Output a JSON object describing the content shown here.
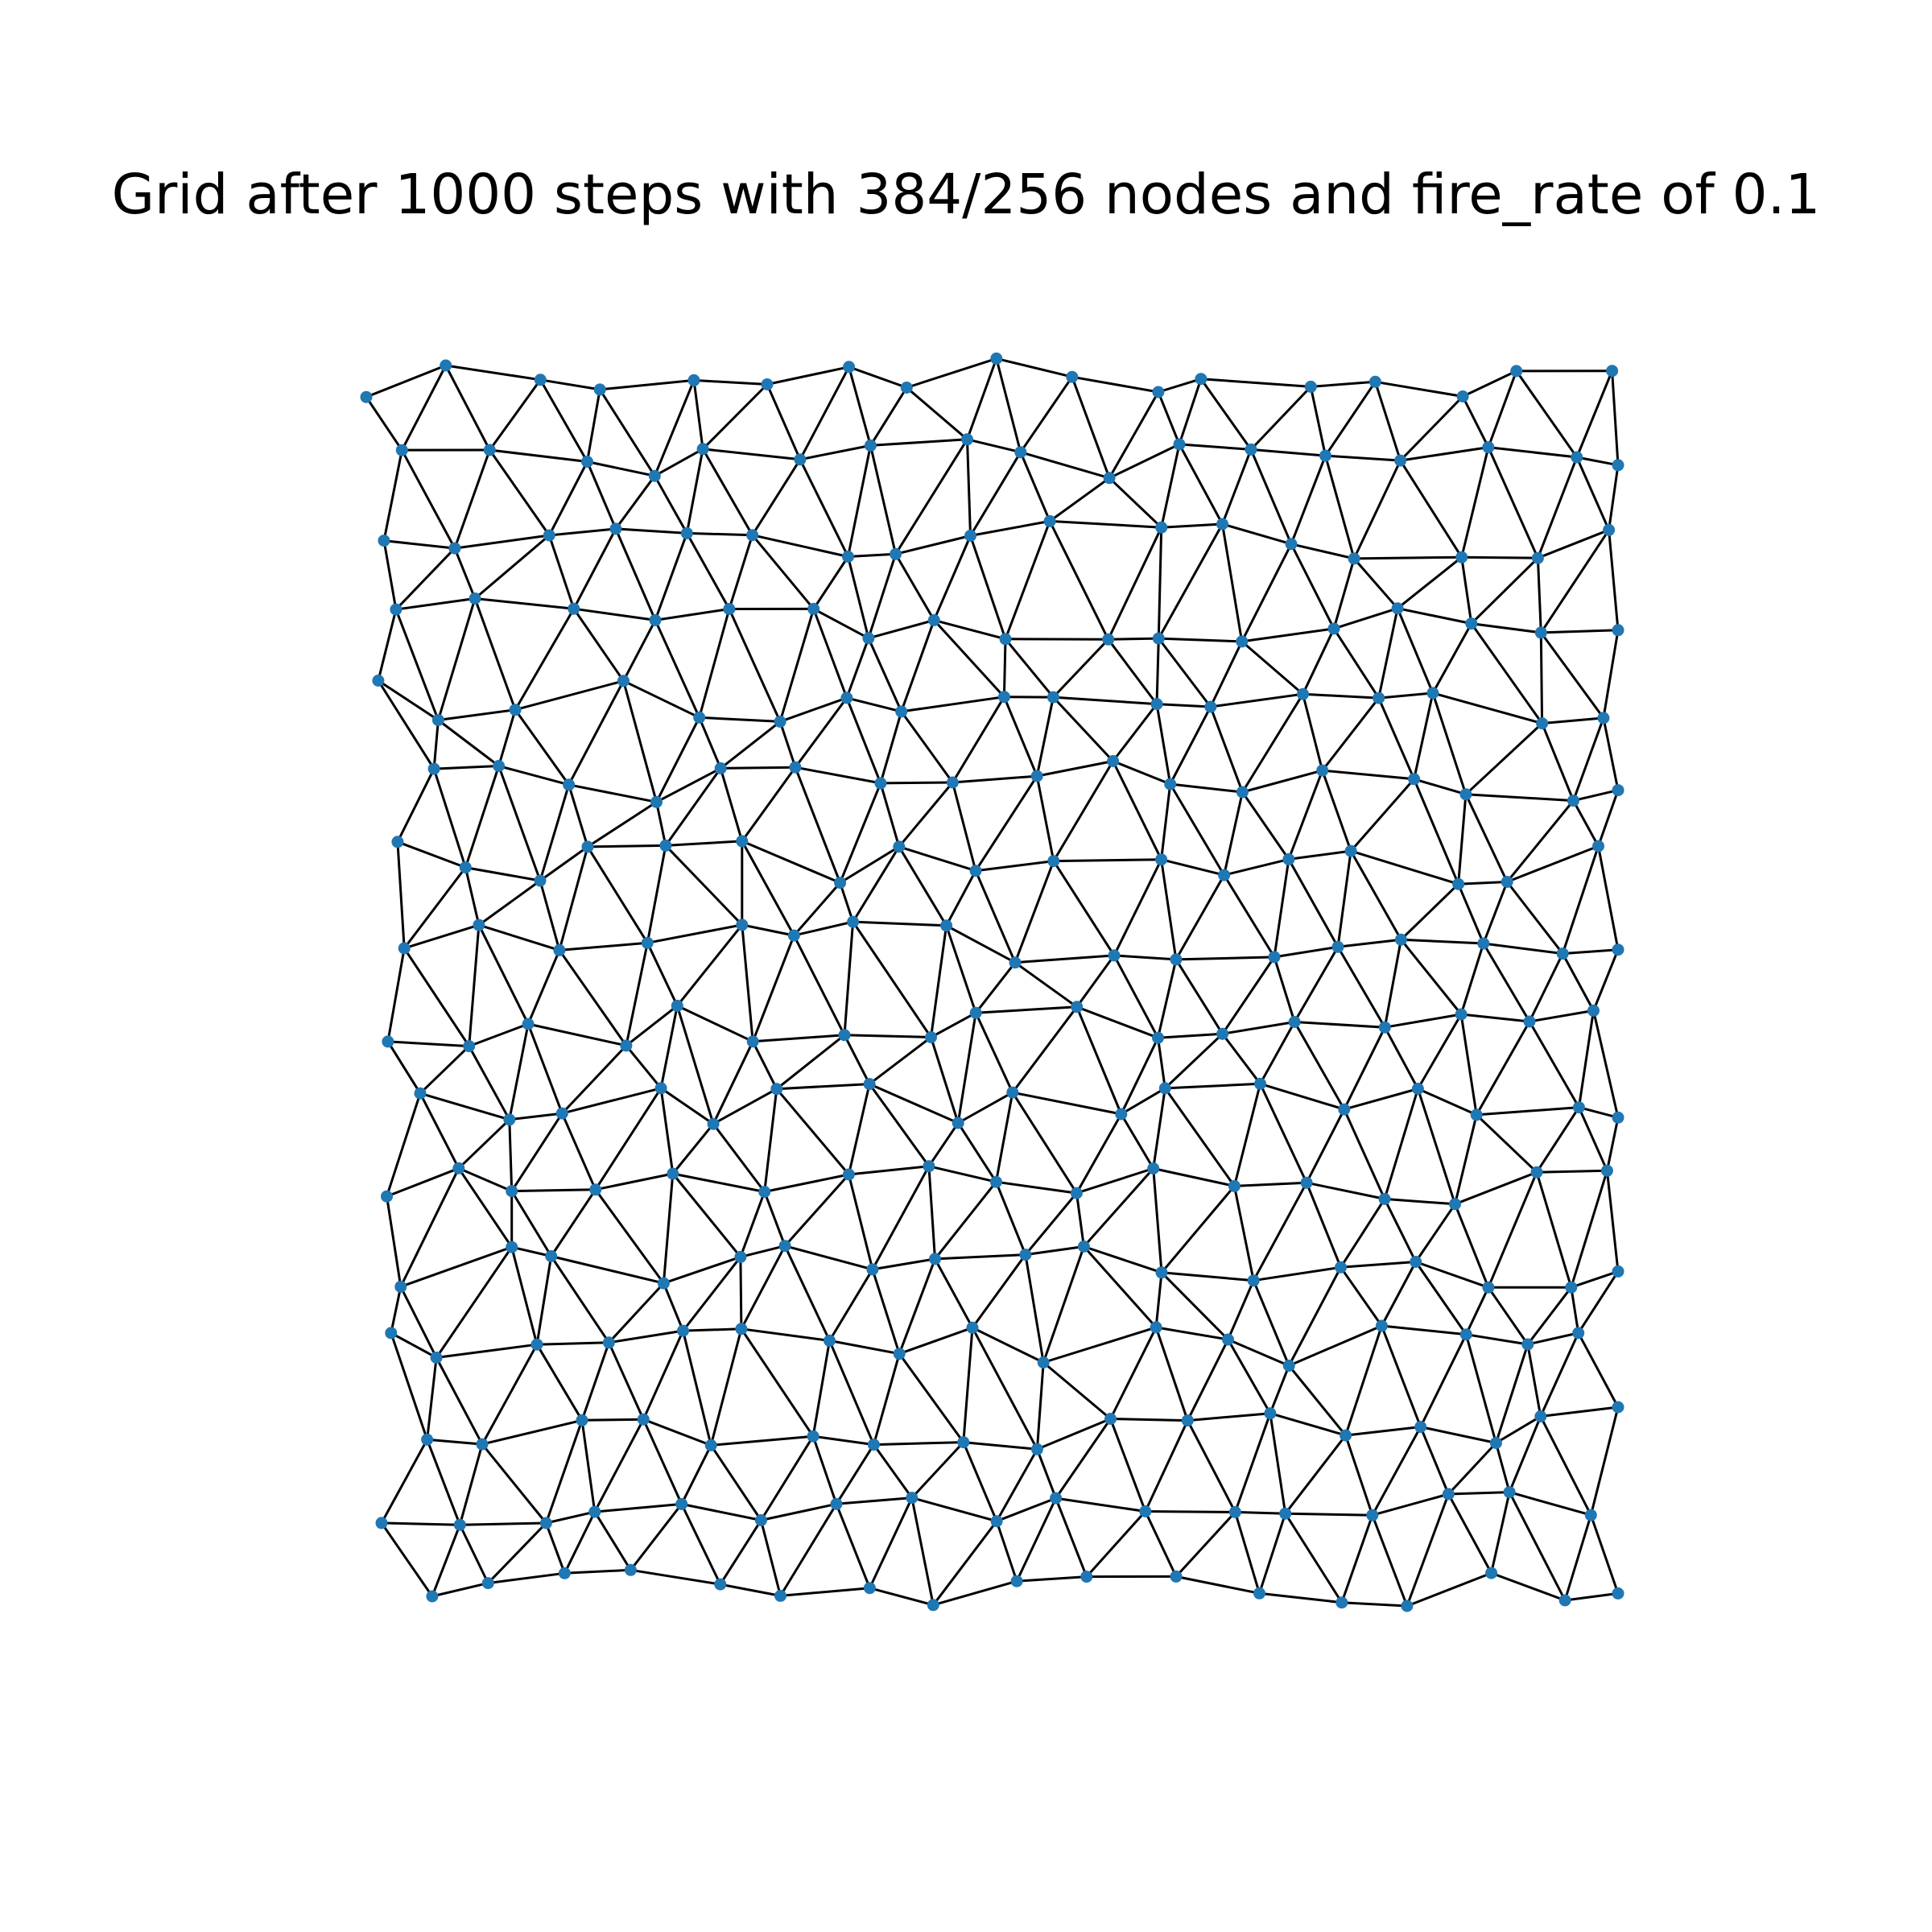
{
  "title": "Grid after 1000 steps with 384/256 nodes and fire_rate of 0.1",
  "colors": {
    "node": "#1f77b4",
    "edge": "#000000",
    "background": "#ffffff"
  },
  "graph": {
    "layout": "irregular triangulated mesh (perturbed grid)",
    "node_count_shown_in_title": "384/256",
    "steps": 1000,
    "fire_rate": 0.1
  }
}
